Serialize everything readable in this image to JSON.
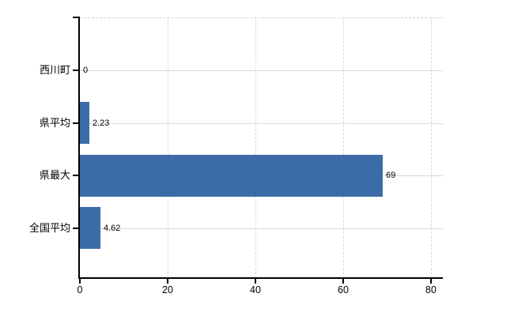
{
  "chart_data": {
    "type": "bar",
    "orientation": "horizontal",
    "title": "",
    "categories": [
      "西川町",
      "県平均",
      "県最大",
      "全国平均"
    ],
    "values": [
      0,
      2.23,
      69,
      4.62
    ],
    "value_labels": [
      "0",
      "2.23",
      "69",
      "4.62"
    ],
    "x_ticks": [
      0,
      20,
      40,
      60,
      80
    ],
    "x_tick_labels": [
      "0",
      "20",
      "40",
      "60",
      "80"
    ],
    "xlim": [
      0,
      82.7
    ],
    "grid": true,
    "legend": false,
    "colors": {
      "bar": "#3c6ca7",
      "grid_horizontal": "#d4dbd4",
      "grid_vertical": "#d9d9d9",
      "axis": "#000000",
      "text": "#000000",
      "background": "#ffffff"
    }
  }
}
